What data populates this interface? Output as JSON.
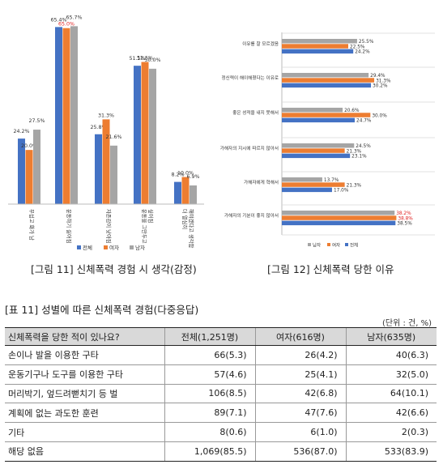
{
  "colors": {
    "total": "#4472c4",
    "female": "#ed7d31",
    "male": "#a5a5a5"
  },
  "figure11": {
    "caption": "[그림 11] 신체폭력 경험 시 생각(감정)",
    "legend": [
      "전체",
      "여자",
      "남자"
    ]
  },
  "figure12": {
    "caption": "[그림 12] 신체폭력 당한 이유",
    "legend": [
      "남자",
      "여자",
      "전체"
    ]
  },
  "table": {
    "title": "[표 11] 성별에 따른 신체폭력 경험(다중응답)",
    "unit": "(단위 : 건, %)",
    "headers": [
      "신체폭력을 당한 적이 있나요?",
      "전체(1,251명)",
      "여자(616명)",
      "남자(635명)"
    ],
    "rows": [
      [
        "손이나 발을 이용한 구타",
        "66(5.3)",
        "26(4.2)",
        "40(6.3)"
      ],
      [
        "운동기구나 도구를 이용한 구타",
        "57(4.6)",
        "25(4.1)",
        "32(5.0)"
      ],
      [
        "머리박기, 엎드려뻗치기 등 벌",
        "106(8.5)",
        "42(6.8)",
        "64(10.1)"
      ],
      [
        "계획에 없는 과도한 훈련",
        "89(7.1)",
        "47(7.6)",
        "42(6.6)"
      ],
      [
        "기타",
        "8(0.6)",
        "6(1.0)",
        "2(0.3)"
      ],
      [
        "해당 없음",
        "1,069(85.5)",
        "536(87.0)",
        "533(83.9)"
      ]
    ]
  },
  "chart_data": [
    {
      "type": "bar",
      "categories": [
        "무섭고 화가 남",
        "운동하기 싫어짐",
        "자존감이 낮아짐",
        "운동을 그만두고 싶어짐",
        "더 열심히 해야겠다고 생각함"
      ],
      "series": [
        {
          "name": "전체",
          "values": [
            24.2,
            65.4,
            25.8,
            51.1,
            8.2
          ]
        },
        {
          "name": "여자",
          "values": [
            20.0,
            65.0,
            31.3,
            52.5,
            10.0
          ]
        },
        {
          "name": "남자",
          "values": [
            27.5,
            65.7,
            21.6,
            50.0,
            6.9
          ]
        }
      ],
      "value_labels": [
        [
          "24.2%",
          "65.4%",
          "25.8%",
          "51.1%",
          "8.2%"
        ],
        [
          "20.0%",
          "65.0%",
          "31.3%",
          "52.5%",
          "10.0%"
        ],
        [
          "27.5%",
          "65.7%",
          "21.6%",
          "50.0%",
          "6.9%"
        ]
      ],
      "ylim": [
        0,
        70
      ]
    },
    {
      "type": "bar",
      "orientation": "horizontal",
      "categories": [
        "이유를 잘 모르겠음",
        "정신력이 해이해졌다는 이유로",
        "좋은 성적을 내지 못해서",
        "가해자의 지시에 따르지 않아서",
        "가해자에게 혁해서",
        "가해자의 기분이 좋지 않아서"
      ],
      "series": [
        {
          "name": "남자",
          "values": [
            25.5,
            29.4,
            20.6,
            24.5,
            13.7,
            38.2
          ]
        },
        {
          "name": "여자",
          "values": [
            22.5,
            31.3,
            30.0,
            21.3,
            21.3,
            38.8
          ]
        },
        {
          "name": "전체",
          "values": [
            24.2,
            30.2,
            24.7,
            23.1,
            17.0,
            38.5
          ]
        }
      ],
      "value_labels": [
        [
          "25.5%",
          "29.4%",
          "20.6%",
          "24.5%",
          "13.7%",
          "38.2%"
        ],
        [
          "22.5%",
          "31.3%",
          "30.0%",
          "21.3%",
          "21.3%",
          "38.8%"
        ],
        [
          "24.2%",
          "30.2%",
          "24.7%",
          "23.1%",
          "17.0%",
          "38.5%"
        ]
      ],
      "xlim": [
        0,
        45
      ]
    }
  ]
}
